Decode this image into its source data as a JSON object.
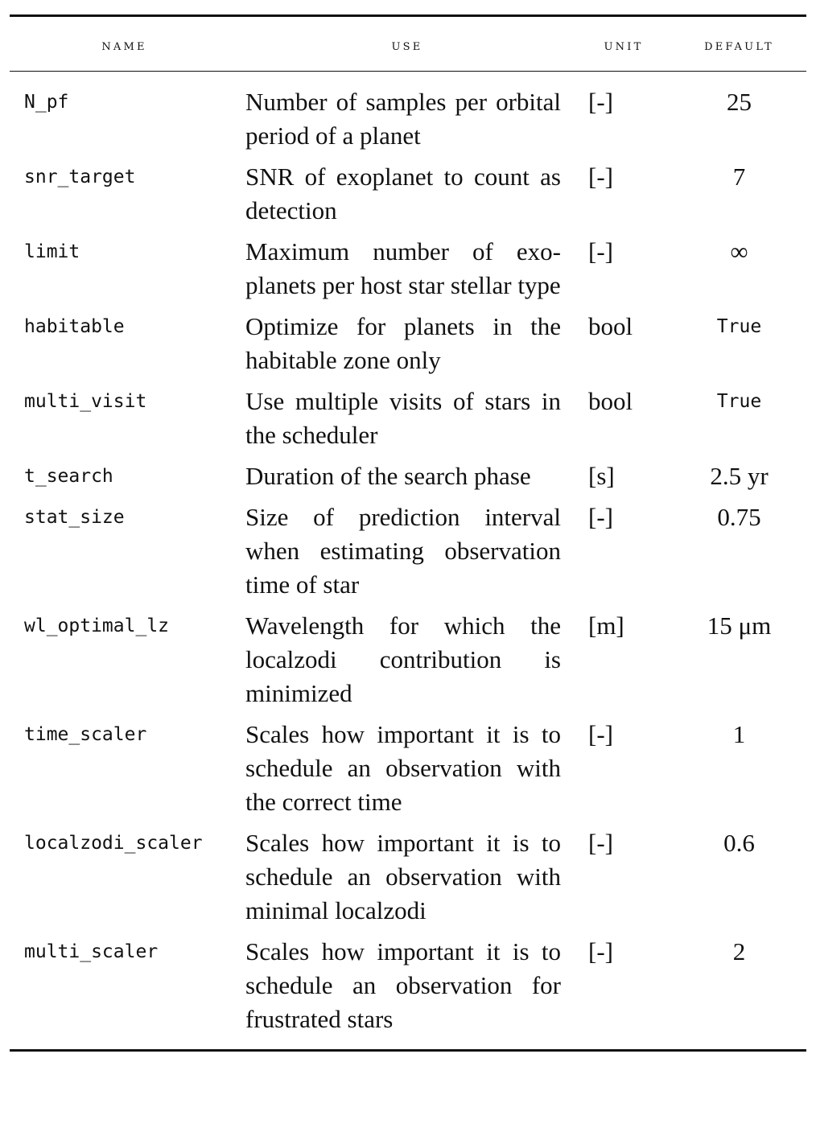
{
  "table": {
    "headers": {
      "name": "NAME",
      "use": "USE",
      "unit": "UNIT",
      "default": "DEFAULT"
    },
    "rows": [
      {
        "name": "N_pf",
        "use": "Number of samples per or­bital period of a planet",
        "unit": "[-]",
        "default": "25"
      },
      {
        "name": "snr_target",
        "use": "SNR of exoplanet to count as detection",
        "unit": "[-]",
        "default": "7"
      },
      {
        "name": "limit",
        "use": "Maximum number of exo­planets per host star stellar type",
        "unit": "[-]",
        "default": "∞"
      },
      {
        "name": "habitable",
        "use": "Optimize for planets in the habitable zone only",
        "unit": "bool",
        "default": "True"
      },
      {
        "name": "multi_visit",
        "use": "Use multiple visits of stars in the scheduler",
        "unit": "bool",
        "default": "True"
      },
      {
        "name": "t_search",
        "use": "Duration of the search phase",
        "unit": "[s]",
        "default": "2.5 yr"
      },
      {
        "name": "stat_size",
        "use": "Size of prediction interval when estimating observa­tion time of star",
        "unit": "[-]",
        "default": "0.75"
      },
      {
        "name": "wl_optimal_lz",
        "use": "Wavelength for which the localzodi contribution is minimized",
        "unit": "[m]",
        "default": "15 μm"
      },
      {
        "name": "time_scaler",
        "use": "Scales how important it is to schedule an observation with the correct time",
        "unit": "[-]",
        "default": "1"
      },
      {
        "name": "localzodi_scaler",
        "use": "Scales how important it is to schedule an observation with minimal localzodi",
        "unit": "[-]",
        "default": "0.6"
      },
      {
        "name": "multi_scaler",
        "use": "Scales how important it is to schedule an observation for frustrated stars",
        "unit": "[-]",
        "default": "2"
      }
    ]
  }
}
